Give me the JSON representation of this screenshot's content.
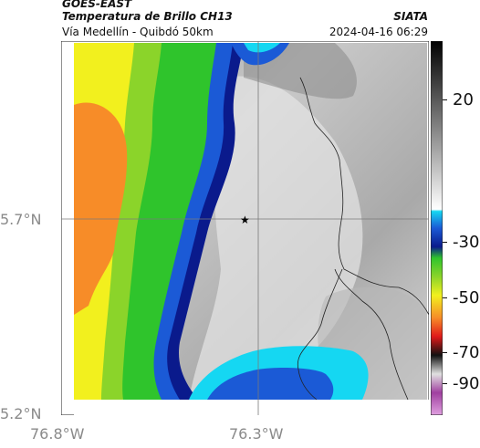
{
  "header": {
    "satellite": "GOES-EAST",
    "product": "Temperatura de Brillo CH13",
    "route": "Vía Medellín - Quibdó 50km",
    "organization": "SIATA",
    "timestamp": "2024-04-16 06:29"
  },
  "map": {
    "latitude_labels": [
      "5.7°N",
      "5.2°N"
    ],
    "longitude_labels": [
      "76.8°W",
      "76.3°W"
    ],
    "marker": "star",
    "palette": {
      "orange": "#f78c28",
      "yellow": "#f2f01e",
      "green": "#2fc42c",
      "navy": "#0a1a8c",
      "blue": "#1b5ad6",
      "cyan": "#15d7f2",
      "gray_cloud": "#d4d4d4"
    }
  },
  "colorbar": {
    "labels": [
      "20",
      "-30",
      "-50",
      "-70",
      "-90"
    ]
  }
}
